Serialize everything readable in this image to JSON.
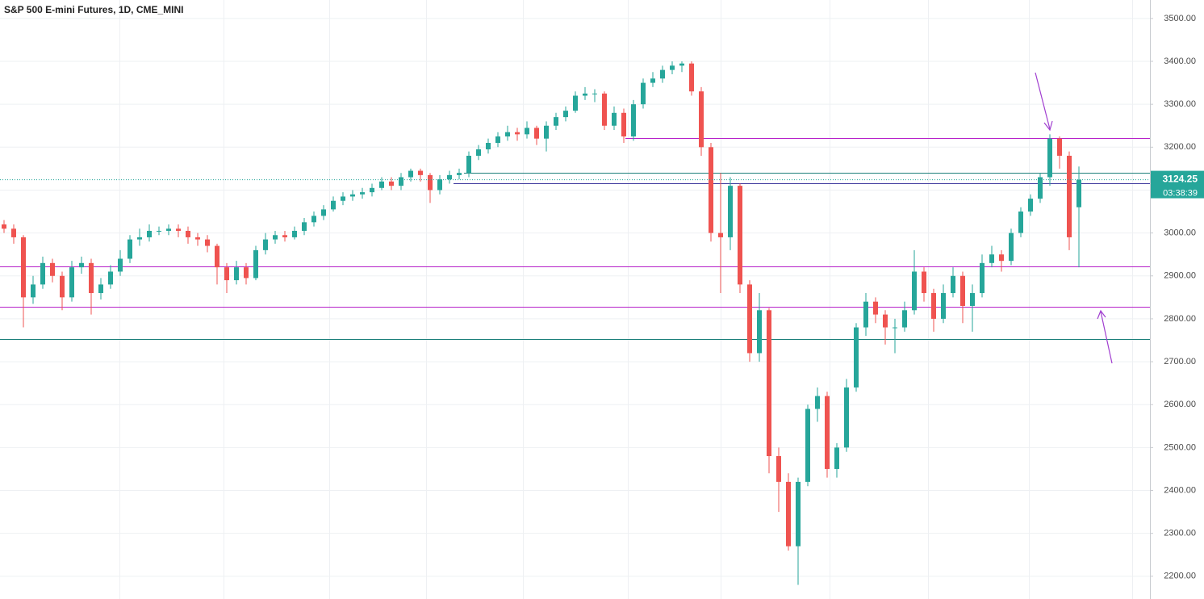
{
  "chart_data": {
    "type": "candlestick",
    "title": "S&P 500 E-mini Futures, 1D, CME_MINI",
    "up_color": "#26a69a",
    "down_color": "#ef5350",
    "ylim": [
      2147,
      3543
    ],
    "yticks": [
      {
        "value": 2200,
        "label": "2200.00"
      },
      {
        "value": 2300,
        "label": "2300.00"
      },
      {
        "value": 2400,
        "label": "2400.00"
      },
      {
        "value": 2500,
        "label": "2500.00"
      },
      {
        "value": 2600,
        "label": "2600.00"
      },
      {
        "value": 2700,
        "label": "2700.00"
      },
      {
        "value": 2800,
        "label": "2800.00"
      },
      {
        "value": 2900,
        "label": "2900.00"
      },
      {
        "value": 3000,
        "label": "3000.00"
      },
      {
        "value": 3100,
        "label": "3100.00"
      },
      {
        "value": 3200,
        "label": "3200.00"
      },
      {
        "value": 3300,
        "label": "3300.00"
      },
      {
        "value": 3400,
        "label": "3400.00"
      },
      {
        "value": 3500,
        "label": "3500.00"
      }
    ],
    "grid": true,
    "countdown": "03:38:39",
    "levels": [
      {
        "value": 3222,
        "color": "#b620c9"
      },
      {
        "value": 3140,
        "color": "#1c7f7a"
      },
      {
        "value": 3115,
        "color": "#3f3a9e"
      },
      {
        "value": 2922,
        "color": "#b620c9"
      },
      {
        "value": 2828,
        "color": "#b620c9"
      },
      {
        "value": 2752,
        "color": "#1c7f7a"
      }
    ],
    "open": [
      3020,
      3010,
      2990,
      2850,
      2880,
      2930,
      2900,
      2850,
      2920,
      2930,
      2860,
      2880,
      2910,
      2940,
      2985,
      2990,
      3005,
      3005,
      3010,
      3005,
      2990,
      2985,
      2970,
      2920,
      2890,
      2920,
      2895,
      2960,
      2985,
      2995,
      2990,
      3005,
      3025,
      3040,
      3055,
      3075,
      3085,
      3090,
      3095,
      3105,
      3120,
      3110,
      3130,
      3145,
      3135,
      3100,
      3125,
      3135,
      3140,
      3180,
      3195,
      3210,
      3225,
      3235,
      3230,
      3245,
      3220,
      3250,
      3270,
      3285,
      3320,
      3325,
      3325,
      3250,
      3280,
      3225,
      3300,
      3350,
      3360,
      3380,
      3390,
      3395,
      3330,
      3200,
      3000,
      2990,
      3110,
      2880,
      2720,
      2820,
      2480,
      2420,
      2270,
      2420,
      2590,
      2620,
      2450,
      2500,
      2640,
      2780,
      2840,
      2810,
      2780,
      2780,
      2820,
      2910,
      2860,
      2800,
      2860,
      2900,
      2830,
      2860,
      2930,
      2950,
      2935,
      3000,
      3050,
      3080,
      3130,
      3220,
      3180,
      3060
    ],
    "high": [
      3030,
      3020,
      2995,
      2900,
      2945,
      2940,
      2910,
      2935,
      2945,
      2940,
      2895,
      2925,
      2960,
      2995,
      3010,
      3020,
      3015,
      3020,
      3020,
      3015,
      3000,
      2995,
      2975,
      2930,
      2935,
      2930,
      2970,
      3000,
      3005,
      3005,
      3015,
      3035,
      3050,
      3065,
      3085,
      3095,
      3100,
      3105,
      3115,
      3130,
      3130,
      3140,
      3150,
      3150,
      3140,
      3135,
      3145,
      3150,
      3190,
      3205,
      3220,
      3235,
      3250,
      3245,
      3260,
      3250,
      3260,
      3280,
      3295,
      3330,
      3340,
      3335,
      3330,
      3295,
      3290,
      3310,
      3360,
      3375,
      3390,
      3400,
      3400,
      3400,
      3340,
      3210,
      3140,
      3130,
      3115,
      2890,
      2860,
      2825,
      2500,
      2440,
      2430,
      2600,
      2640,
      2630,
      2510,
      2660,
      2790,
      2860,
      2850,
      2820,
      2800,
      2840,
      2960,
      2920,
      2870,
      2880,
      2920,
      2910,
      2880,
      2950,
      2970,
      2960,
      3010,
      3060,
      3090,
      3140,
      3230,
      3225,
      3190,
      3155
    ],
    "low": [
      3000,
      2975,
      2780,
      2835,
      2870,
      2885,
      2820,
      2840,
      2905,
      2810,
      2845,
      2870,
      2900,
      2930,
      2970,
      2980,
      2995,
      2995,
      2990,
      2975,
      2970,
      2955,
      2880,
      2860,
      2880,
      2880,
      2890,
      2950,
      2975,
      2980,
      2985,
      2995,
      3015,
      3030,
      3050,
      3065,
      3075,
      3080,
      3085,
      3100,
      3100,
      3100,
      3120,
      3120,
      3070,
      3090,
      3115,
      3125,
      3130,
      3170,
      3185,
      3200,
      3215,
      3215,
      3220,
      3205,
      3190,
      3240,
      3260,
      3280,
      3310,
      3305,
      3240,
      3240,
      3210,
      3215,
      3290,
      3340,
      3350,
      3370,
      3375,
      3320,
      3180,
      2980,
      2860,
      2960,
      2860,
      2700,
      2700,
      2440,
      2350,
      2260,
      2180,
      2410,
      2560,
      2430,
      2430,
      2490,
      2630,
      2760,
      2790,
      2740,
      2720,
      2770,
      2810,
      2840,
      2770,
      2790,
      2850,
      2790,
      2770,
      2850,
      2920,
      2910,
      2925,
      2990,
      3040,
      3070,
      3110,
      3150,
      2960,
      2920
    ],
    "close": [
      3010,
      2990,
      2850,
      2880,
      2930,
      2900,
      2850,
      2920,
      2930,
      2860,
      2880,
      2910,
      2940,
      2985,
      2990,
      3005,
      3005,
      3010,
      3005,
      2990,
      2985,
      2970,
      2920,
      2890,
      2920,
      2895,
      2960,
      2985,
      2995,
      2990,
      3005,
      3025,
      3040,
      3055,
      3075,
      3085,
      3090,
      3095,
      3105,
      3120,
      3110,
      3130,
      3145,
      3135,
      3100,
      3125,
      3135,
      3140,
      3180,
      3195,
      3210,
      3225,
      3235,
      3230,
      3245,
      3220,
      3250,
      3270,
      3285,
      3320,
      3325,
      3325,
      3250,
      3280,
      3225,
      3300,
      3350,
      3360,
      3380,
      3390,
      3395,
      3330,
      3200,
      3000,
      2990,
      3110,
      2880,
      2720,
      2820,
      2480,
      2420,
      2270,
      2420,
      2590,
      2620,
      2450,
      2500,
      2640,
      2780,
      2840,
      2810,
      2780,
      2780,
      2820,
      2910,
      2860,
      2800,
      2860,
      2900,
      2830,
      2860,
      2930,
      2950,
      2935,
      3000,
      3050,
      3080,
      3130,
      3220,
      3180,
      2990,
      3124.25
    ]
  }
}
